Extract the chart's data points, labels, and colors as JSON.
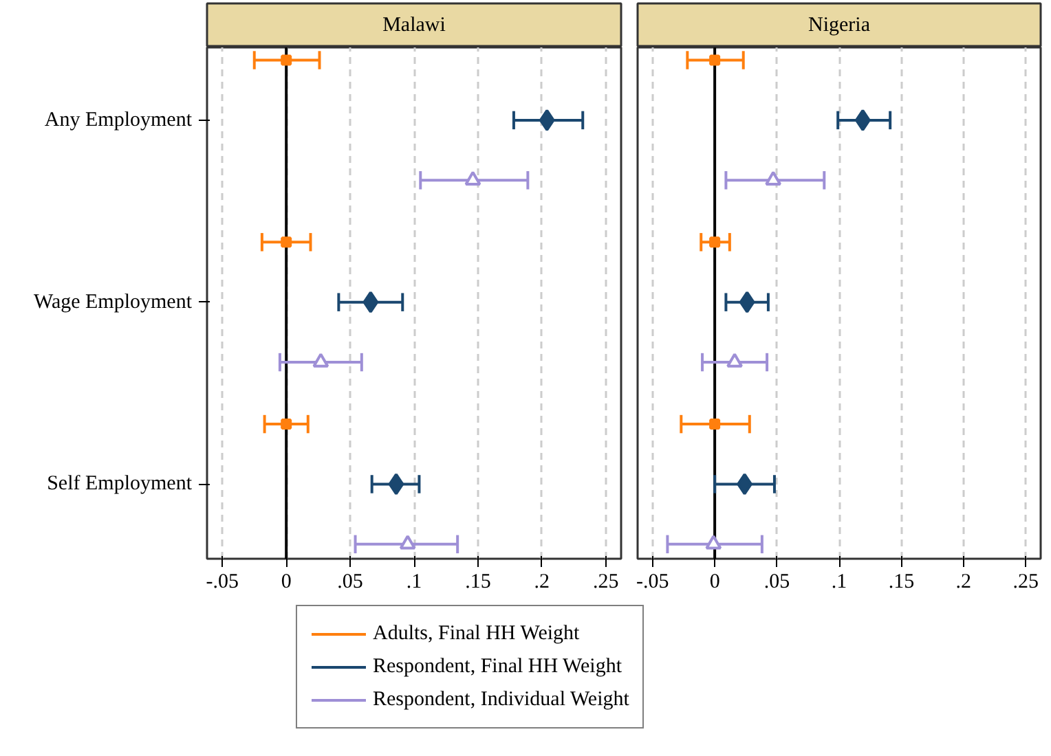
{
  "chart_data": [
    {
      "type": "scatter",
      "orientation": "horizontal",
      "title": "Malawi",
      "categories": [
        "Any Employment",
        "Wage Employment",
        "Self Employment"
      ],
      "xlim": [
        -0.062,
        0.262
      ],
      "xticks": [
        {
          "value": -0.05,
          "label": "-.05"
        },
        0,
        {
          "value": 0.05,
          "label": ".05"
        },
        {
          "value": 0.1,
          "label": ".1"
        },
        {
          "value": 0.15,
          "label": ".15"
        },
        {
          "value": 0.2,
          "label": ".2"
        },
        {
          "value": 0.25,
          "label": ".25"
        }
      ],
      "grid": "x",
      "legend": "bottom",
      "ref_lines": [
        {
          "axis": "x",
          "value": 0,
          "color": "#000000"
        }
      ],
      "series": [
        {
          "name": "Adults, Final HH Weight",
          "color": "#ff7f0e",
          "marker": "square",
          "values": [
            0,
            0,
            0
          ],
          "errors": [
            [
              -0.025,
              0.026
            ],
            [
              -0.019,
              0.019
            ],
            [
              -0.017,
              0.017
            ]
          ]
        },
        {
          "name": "Respondent, Final HH Weight",
          "color": "#1a476f",
          "marker": "diamond",
          "values": [
            0.204,
            0.066,
            0.086
          ],
          "errors": [
            [
              0.178,
              0.232
            ],
            [
              0.041,
              0.091
            ],
            [
              0.067,
              0.104
            ]
          ]
        },
        {
          "name": "Respondent, Individual Weight",
          "color": "#9e8fd6",
          "marker": "triangle",
          "values": [
            0.146,
            0.027,
            0.095
          ],
          "errors": [
            [
              0.105,
              0.189
            ],
            [
              -0.005,
              0.059
            ],
            [
              0.054,
              0.134
            ]
          ]
        }
      ]
    },
    {
      "type": "scatter",
      "orientation": "horizontal",
      "title": "Nigeria",
      "categories": [
        null,
        null,
        null
      ],
      "xlim": [
        -0.062,
        0.262
      ],
      "xticks": [
        {
          "value": -0.05,
          "label": "-.05"
        },
        0,
        {
          "value": 0.05,
          "label": ".05"
        },
        {
          "value": 0.1,
          "label": ".1"
        },
        {
          "value": 0.15,
          "label": ".15"
        },
        {
          "value": 0.2,
          "label": ".2"
        },
        {
          "value": 0.25,
          "label": ".25"
        }
      ],
      "grid": "x",
      "tick_labels": "x",
      "ref_lines": [
        {
          "axis": "x",
          "value": 0,
          "color": "#000000"
        }
      ],
      "series": [
        {
          "color": "#ff7f0e",
          "marker": "square",
          "values": [
            0,
            0,
            0
          ],
          "errors": [
            [
              -0.022,
              0.023
            ],
            [
              -0.011,
              0.012
            ],
            [
              -0.027,
              0.028
            ]
          ]
        },
        {
          "color": "#1a476f",
          "marker": "diamond",
          "values": [
            0.119,
            0.026,
            0.024
          ],
          "errors": [
            [
              0.099,
              0.141
            ],
            [
              0.009,
              0.043
            ],
            [
              0.0,
              0.048
            ]
          ]
        },
        {
          "color": "#9e8fd6",
          "marker": "triangle",
          "values": [
            0.047,
            0.016,
            -0.001
          ],
          "errors": [
            [
              0.009,
              0.088
            ],
            [
              -0.01,
              0.042
            ],
            [
              -0.038,
              0.038
            ]
          ]
        }
      ]
    }
  ]
}
